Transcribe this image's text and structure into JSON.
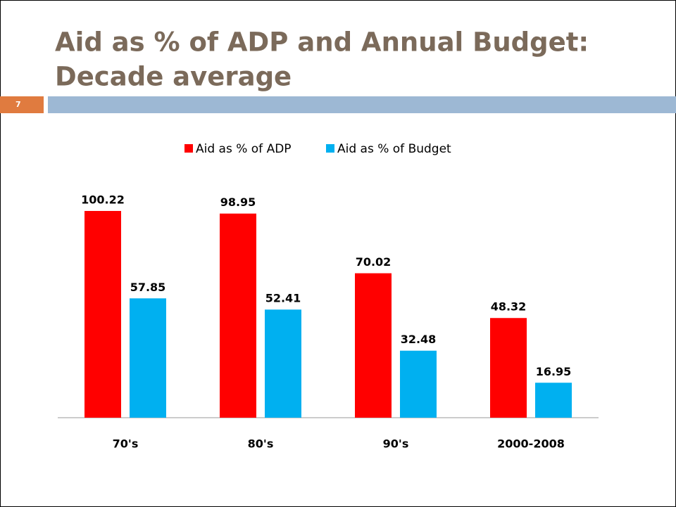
{
  "slide_number": "7",
  "chart_data": {
    "type": "bar",
    "title": "Aid as % of ADP and Annual Budget: Decade average",
    "categories": [
      "70's",
      "80's",
      "90's",
      "2000-2008"
    ],
    "series": [
      {
        "name": "Aid as % of ADP",
        "color": "#ff0000",
        "values": [
          100.22,
          98.95,
          70.02,
          48.32
        ]
      },
      {
        "name": "Aid as % of Budget",
        "color": "#00b0f0",
        "values": [
          57.85,
          52.41,
          32.48,
          16.95
        ]
      }
    ],
    "ylim": [
      0,
      110
    ],
    "legend": "top"
  }
}
